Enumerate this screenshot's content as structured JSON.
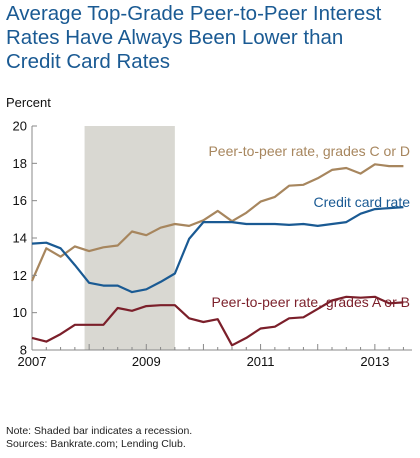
{
  "title_lines": [
    "Average Top-Grade Peer-to-Peer Interest",
    "Rates Have Always Been Lower than",
    "Credit Card Rates"
  ],
  "notes": [
    "Note: Shaded bar indicates a recession.",
    "Sources: Bankrate.com; Lending Club."
  ],
  "chart_data": {
    "type": "line",
    "ylabel": "Percent",
    "xlabel": "",
    "xlim": [
      2007.0,
      2013.65
    ],
    "ylim": [
      8,
      20
    ],
    "x_ticks": [
      2007,
      2009,
      2011,
      2013
    ],
    "y_ticks": [
      8,
      10,
      12,
      14,
      16,
      18,
      20
    ],
    "recession": {
      "start": 2007.92,
      "end": 2009.5
    },
    "colors": {
      "recession": "#d9d8d2",
      "axis": "#888888"
    },
    "series": [
      {
        "name": "Peer-to-peer rate, grades C or D",
        "color": "#a7865e",
        "x": [
          2007.0,
          2007.25,
          2007.5,
          2007.75,
          2008.0,
          2008.25,
          2008.5,
          2008.75,
          2009.0,
          2009.25,
          2009.5,
          2009.75,
          2010.0,
          2010.25,
          2010.5,
          2010.75,
          2011.0,
          2011.25,
          2011.5,
          2011.75,
          2012.0,
          2012.25,
          2012.5,
          2012.75,
          2013.0,
          2013.25,
          2013.5
        ],
        "values": [
          11.7,
          13.45,
          13.0,
          13.55,
          13.3,
          13.5,
          13.6,
          14.35,
          14.15,
          14.55,
          14.75,
          14.65,
          14.95,
          15.45,
          14.9,
          15.35,
          15.95,
          16.2,
          16.8,
          16.85,
          17.2,
          17.65,
          17.75,
          17.45,
          17.95,
          17.85,
          17.85
        ]
      },
      {
        "name": "Credit card rate",
        "color": "#1a5a93",
        "x": [
          2007.0,
          2007.25,
          2007.5,
          2007.75,
          2008.0,
          2008.25,
          2008.5,
          2008.75,
          2009.0,
          2009.25,
          2009.5,
          2009.75,
          2010.0,
          2010.25,
          2010.5,
          2010.75,
          2011.0,
          2011.25,
          2011.5,
          2011.75,
          2012.0,
          2012.25,
          2012.5,
          2012.75,
          2013.0,
          2013.25,
          2013.5
        ],
        "values": [
          13.7,
          13.75,
          13.45,
          12.55,
          11.6,
          11.45,
          11.45,
          11.1,
          11.25,
          11.65,
          12.1,
          13.95,
          14.85,
          14.85,
          14.85,
          14.75,
          14.75,
          14.75,
          14.7,
          14.75,
          14.65,
          14.75,
          14.85,
          15.3,
          15.55,
          15.6,
          15.65
        ]
      },
      {
        "name": "Peer-to-peer rate, grades A or B",
        "color": "#7b1f2a",
        "x": [
          2007.0,
          2007.25,
          2007.5,
          2007.75,
          2008.0,
          2008.25,
          2008.5,
          2008.75,
          2009.0,
          2009.25,
          2009.5,
          2009.75,
          2010.0,
          2010.25,
          2010.5,
          2010.75,
          2011.0,
          2011.25,
          2011.5,
          2011.75,
          2012.0,
          2012.25,
          2012.5,
          2012.75,
          2013.0,
          2013.25,
          2013.5
        ],
        "values": [
          8.65,
          8.45,
          8.85,
          9.35,
          9.35,
          9.35,
          10.25,
          10.1,
          10.35,
          10.4,
          10.4,
          9.7,
          9.5,
          9.65,
          8.25,
          8.65,
          9.15,
          9.25,
          9.7,
          9.75,
          10.2,
          10.65,
          10.85,
          10.8,
          10.85,
          10.5,
          10.55
        ]
      }
    ]
  }
}
